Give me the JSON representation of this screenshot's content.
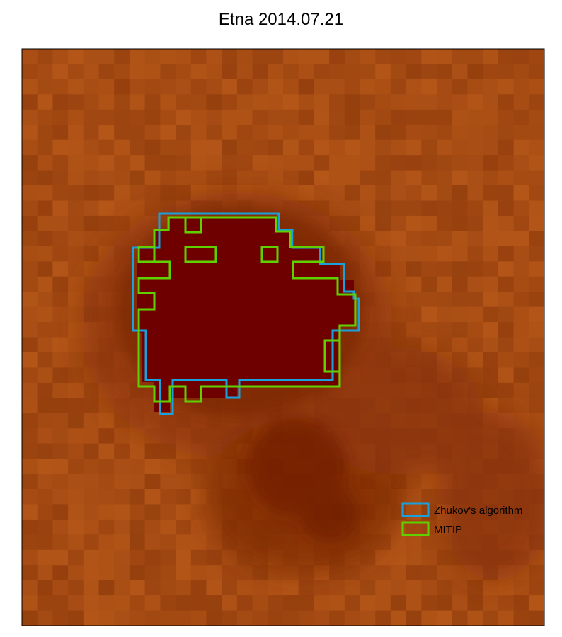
{
  "title": "Etna 2014.07.21",
  "chart_data": {
    "type": "heatmap",
    "title": "Etna 2014.07.21",
    "xlabel": "",
    "ylabel": "",
    "colors": {
      "background": "#a94e12",
      "hotspot": "#6f0000",
      "zhukov": "#1aa0dc",
      "mitip": "#5fd000"
    },
    "legend": {
      "position": "bottom-right",
      "entries": [
        {
          "label": "Zhukov's algorithm",
          "color": "#1aa0dc"
        },
        {
          "label": "MITIP",
          "color": "#5fd000"
        }
      ]
    }
  }
}
